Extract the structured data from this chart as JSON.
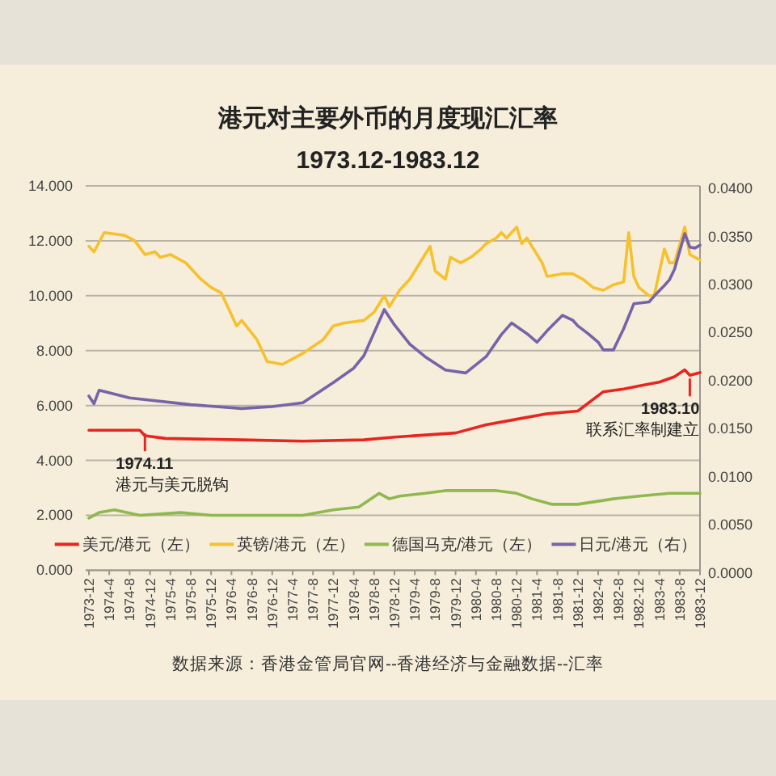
{
  "chart_data": {
    "type": "line",
    "title": "港元对主要外币的月度现汇汇率",
    "subtitle": "1973.12-1983.12",
    "xlim": [
      "1973-12",
      "1983-12"
    ],
    "xticks": [
      {
        "value": "1973-12",
        "label": "1973-12"
      },
      {
        "value": "1974-04",
        "label": "1974-4"
      },
      {
        "value": "1974-08",
        "label": "1974-8"
      },
      {
        "value": "1974-12",
        "label": "1974-12"
      },
      {
        "value": "1975-04",
        "label": "1975-4"
      },
      {
        "value": "1975-08",
        "label": "1975-8"
      },
      {
        "value": "1975-12",
        "label": "1975-12"
      },
      {
        "value": "1976-04",
        "label": "1976-4"
      },
      {
        "value": "1976-08",
        "label": "1976-8"
      },
      {
        "value": "1976-12",
        "label": "1976-12"
      },
      {
        "value": "1977-04",
        "label": "1977-4"
      },
      {
        "value": "1977-08",
        "label": "1977-8"
      },
      {
        "value": "1977-12",
        "label": "1977-12"
      },
      {
        "value": "1978-04",
        "label": "1978-4"
      },
      {
        "value": "1978-08",
        "label": "1978-8"
      },
      {
        "value": "1978-12",
        "label": "1978-12"
      },
      {
        "value": "1979-04",
        "label": "1979-4"
      },
      {
        "value": "1979-08",
        "label": "1979-8"
      },
      {
        "value": "1979-12",
        "label": "1979-12"
      },
      {
        "value": "1980-04",
        "label": "1980-4"
      },
      {
        "value": "1980-08",
        "label": "1980-8"
      },
      {
        "value": "1980-12",
        "label": "1980-12"
      },
      {
        "value": "1981-04",
        "label": "1981-4"
      },
      {
        "value": "1981-08",
        "label": "1981-8"
      },
      {
        "value": "1981-12",
        "label": "1981-12"
      },
      {
        "value": "1982-04",
        "label": "1982-4"
      },
      {
        "value": "1982-08",
        "label": "1982-8"
      },
      {
        "value": "1982-12",
        "label": "1982-12"
      },
      {
        "value": "1983-04",
        "label": "1983-4"
      },
      {
        "value": "1983-08",
        "label": "1983-8"
      },
      {
        "value": "1983-12",
        "label": "1983-12"
      }
    ],
    "ylim": [
      0,
      14
    ],
    "yticks": [
      {
        "value": 0,
        "label": "0.000"
      },
      {
        "value": 2,
        "label": "2.000"
      },
      {
        "value": 4,
        "label": "4.000"
      },
      {
        "value": 6,
        "label": "6.000"
      },
      {
        "value": 8,
        "label": "8.000"
      },
      {
        "value": 10,
        "label": "10.000"
      },
      {
        "value": 12,
        "label": "12.000"
      },
      {
        "value": 14,
        "label": "14.000"
      }
    ],
    "y2lim": [
      0,
      0.04
    ],
    "y2ticks": [
      {
        "value": 0,
        "label": "0.0000"
      },
      {
        "value": 0.005,
        "label": "0.0050"
      },
      {
        "value": 0.01,
        "label": "0.0100"
      },
      {
        "value": 0.015,
        "label": "0.0150"
      },
      {
        "value": 0.02,
        "label": "0.0200"
      },
      {
        "value": 0.025,
        "label": "0.0250"
      },
      {
        "value": 0.03,
        "label": "0.0300"
      },
      {
        "value": 0.035,
        "label": "0.0350"
      },
      {
        "value": 0.04,
        "label": "0.0400"
      }
    ],
    "grid": "y",
    "legend": "bottom",
    "series": [
      {
        "name": "美元/港元（左）",
        "color": "#e8251f",
        "x": [
          "1973-12",
          "1974-10",
          "1974-11",
          "1975-03",
          "1976-06",
          "1977-06",
          "1978-06",
          "1978-12",
          "1979-12",
          "1980-06",
          "1980-12",
          "1981-06",
          "1981-12",
          "1982-05",
          "1982-09",
          "1983-01",
          "1983-04",
          "1983-07",
          "1983-09",
          "1983-10",
          "1983-12"
        ],
        "values": [
          5.1,
          5.1,
          4.9,
          4.8,
          4.75,
          4.7,
          4.75,
          4.85,
          5.0,
          5.3,
          5.5,
          5.7,
          5.8,
          6.5,
          6.6,
          6.75,
          6.85,
          7.05,
          7.3,
          7.1,
          7.2
        ]
      },
      {
        "name": "英镑/港元（左）",
        "color": "#f5c12e",
        "x": [
          "1973-12",
          "1974-01",
          "1974-03",
          "1974-07",
          "1974-09",
          "1974-11",
          "1975-01",
          "1975-02",
          "1975-04",
          "1975-07",
          "1975-10",
          "1975-12",
          "1976-02",
          "1976-04",
          "1976-05",
          "1976-06",
          "1976-09",
          "1976-11",
          "1977-02",
          "1977-06",
          "1977-10",
          "1977-12",
          "1978-02",
          "1978-06",
          "1978-08",
          "1978-10",
          "1978-11",
          "1979-01",
          "1979-03",
          "1979-07",
          "1979-08",
          "1979-10",
          "1979-11",
          "1980-01",
          "1980-03",
          "1980-05",
          "1980-06",
          "1980-08",
          "1980-09",
          "1980-10",
          "1980-12",
          "1981-01",
          "1981-02",
          "1981-03",
          "1981-05",
          "1981-06",
          "1981-09",
          "1981-11",
          "1982-01",
          "1982-03",
          "1982-05",
          "1982-07",
          "1982-09",
          "1982-10",
          "1982-11",
          "1982-12",
          "1983-02",
          "1983-03",
          "1983-05",
          "1983-06",
          "1983-07",
          "1983-09",
          "1983-10",
          "1983-11",
          "1983-12"
        ],
        "values": [
          11.8,
          11.6,
          12.3,
          12.2,
          12.0,
          11.5,
          11.6,
          11.4,
          11.5,
          11.2,
          10.6,
          10.3,
          10.1,
          9.3,
          8.9,
          9.1,
          8.4,
          7.6,
          7.5,
          7.9,
          8.4,
          8.9,
          9.0,
          9.1,
          9.4,
          10.0,
          9.6,
          10.2,
          10.6,
          11.8,
          10.9,
          10.6,
          11.4,
          11.2,
          11.4,
          11.7,
          11.9,
          12.1,
          12.3,
          12.1,
          12.5,
          11.9,
          12.1,
          11.8,
          11.2,
          10.7,
          10.8,
          10.8,
          10.6,
          10.3,
          10.2,
          10.4,
          10.5,
          12.3,
          10.7,
          10.3,
          10.0,
          10.0,
          11.7,
          11.2,
          11.2,
          12.5,
          11.5,
          11.4,
          11.3
        ]
      },
      {
        "name": "德国马克/港元（左）",
        "color": "#8fb84f",
        "x": [
          "1973-12",
          "1974-02",
          "1974-05",
          "1974-10",
          "1975-06",
          "1975-12",
          "1976-06",
          "1976-12",
          "1977-06",
          "1977-12",
          "1978-05",
          "1978-09",
          "1978-11",
          "1979-01",
          "1979-06",
          "1979-10",
          "1980-04",
          "1980-08",
          "1980-12",
          "1981-03",
          "1981-07",
          "1981-12",
          "1982-07",
          "1982-12",
          "1983-06",
          "1983-12"
        ],
        "values": [
          1.9,
          2.1,
          2.2,
          2.0,
          2.1,
          2.0,
          2.0,
          2.0,
          2.0,
          2.2,
          2.3,
          2.8,
          2.6,
          2.7,
          2.8,
          2.9,
          2.9,
          2.9,
          2.8,
          2.6,
          2.4,
          2.4,
          2.6,
          2.7,
          2.8,
          2.8
        ]
      },
      {
        "name": "日元/港元（右）",
        "color": "#7764a8",
        "axis": "y2",
        "x": [
          "1973-12",
          "1974-01",
          "1974-02",
          "1974-08",
          "1975-08",
          "1976-06",
          "1976-12",
          "1977-06",
          "1977-12",
          "1978-04",
          "1978-06",
          "1978-10",
          "1978-12",
          "1979-03",
          "1979-06",
          "1979-10",
          "1980-02",
          "1980-06",
          "1980-09",
          "1980-11",
          "1981-02",
          "1981-04",
          "1981-06",
          "1981-09",
          "1981-11",
          "1981-12",
          "1982-02",
          "1982-04",
          "1982-05",
          "1982-07",
          "1982-09",
          "1982-11",
          "1983-02",
          "1983-03",
          "1983-05",
          "1983-06",
          "1983-07",
          "1983-09",
          "1983-10",
          "1983-11",
          "1983-12"
        ],
        "values": [
          0.0184,
          0.0176,
          0.019,
          0.0182,
          0.0175,
          0.0171,
          0.0173,
          0.0177,
          0.0198,
          0.0213,
          0.0226,
          0.0274,
          0.0258,
          0.0238,
          0.0225,
          0.0211,
          0.0208,
          0.0225,
          0.0248,
          0.026,
          0.0249,
          0.024,
          0.0252,
          0.0268,
          0.0263,
          0.0257,
          0.0249,
          0.024,
          0.0232,
          0.0232,
          0.0254,
          0.028,
          0.0282,
          0.0288,
          0.0299,
          0.0305,
          0.0316,
          0.0353,
          0.0339,
          0.0338,
          0.0341
        ]
      }
    ],
    "annotations": [
      {
        "text": "1974.11\n港元与美元脱钩",
        "x": "1974-11",
        "y": 5.1
      },
      {
        "text": "1983.10\n联系汇率制建立",
        "x": "1983-10",
        "y": 7.1
      },
      "数据来源：香港金管局官网--香港经济与金融数据--汇率"
    ]
  }
}
